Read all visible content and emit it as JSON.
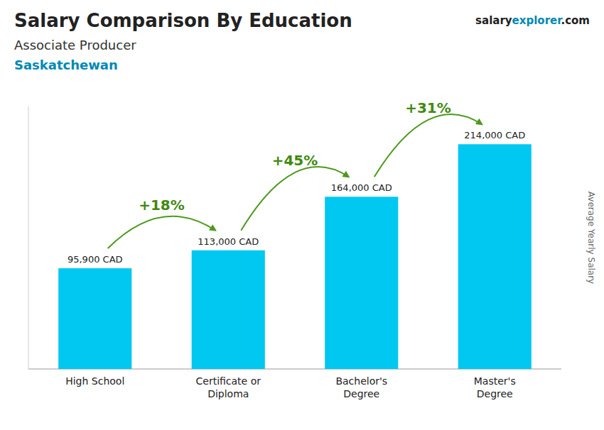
{
  "chart_data": {
    "type": "bar",
    "title": "Salary Comparison By Education",
    "subtitle": [
      "Associate Producer",
      "Saskatchewan"
    ],
    "brand": [
      "salary",
      "explorer",
      ".com"
    ],
    "ylabel": "Average Yearly Salary",
    "categories": [
      "High School",
      "Certificate or\nDiploma",
      "Bachelor's\nDegree",
      "Master's\nDegree"
    ],
    "values": [
      95900,
      113000,
      164000,
      214000
    ],
    "value_labels": [
      "95,900 CAD",
      "113,000 CAD",
      "164,000 CAD",
      "214,000 CAD"
    ],
    "data_labels": true,
    "annotations": [
      "+18%",
      "+45%",
      "+31%"
    ],
    "color": "#00c8f0",
    "ylim": [
      0,
      250000
    ],
    "tick_labels": "x",
    "grid": false
  }
}
